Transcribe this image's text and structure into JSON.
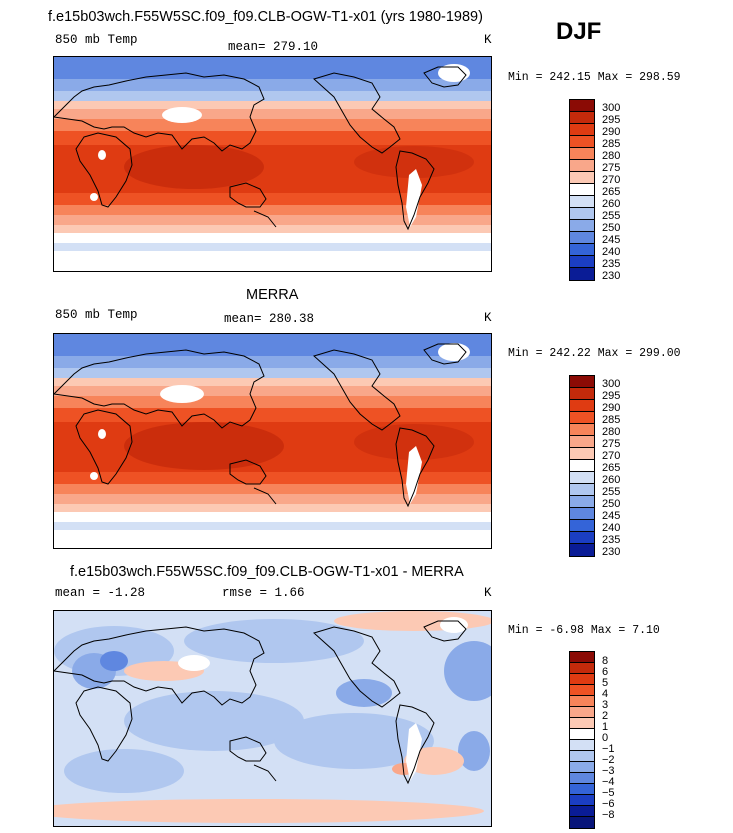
{
  "season": "DJF",
  "panels": [
    {
      "title": "f.e15b03wch.F55W5SC.f09_f09.CLB-OGW-T1-x01 (yrs 1980-1989)",
      "left_label": "850 mb Temp",
      "center_label": "mean=  279.10",
      "right_label": "K",
      "stats": "Min =  242.15  Max =  298.59",
      "colorbar": {
        "ticks": [
          "300",
          "295",
          "290",
          "285",
          "280",
          "275",
          "270",
          "265",
          "260",
          "255",
          "250",
          "245",
          "240",
          "235",
          "230"
        ],
        "colors": [
          "#8b0b05",
          "#c42a0b",
          "#df3b12",
          "#ee5224",
          "#f7845a",
          "#f9a78a",
          "#fcc9b4",
          "#ffffff",
          "#d3e0f5",
          "#b0c7ef",
          "#8aaae8",
          "#5f87e0",
          "#3464d8",
          "#1b3ec3",
          "#0a1c96"
        ]
      }
    },
    {
      "title": "MERRA",
      "left_label": "850 mb Temp",
      "center_label": "mean=  280.38",
      "right_label": "K",
      "stats": "Min =  242.22  Max =  299.00",
      "colorbar": {
        "ticks": [
          "300",
          "295",
          "290",
          "285",
          "280",
          "275",
          "270",
          "265",
          "260",
          "255",
          "250",
          "245",
          "240",
          "235",
          "230"
        ],
        "colors": [
          "#8b0b05",
          "#c42a0b",
          "#df3b12",
          "#ee5224",
          "#f7845a",
          "#f9a78a",
          "#fcc9b4",
          "#ffffff",
          "#d3e0f5",
          "#b0c7ef",
          "#8aaae8",
          "#5f87e0",
          "#3464d8",
          "#1b3ec3",
          "#0a1c96"
        ]
      }
    },
    {
      "title": "f.e15b03wch.F55W5SC.f09_f09.CLB-OGW-T1-x01 - MERRA",
      "left_label": "mean =   -1.28",
      "center_label": "rmse =    1.66",
      "right_label": "K",
      "stats": "Min =   -6.98  Max =    7.10",
      "colorbar": {
        "ticks": [
          "8",
          "6",
          "5",
          "4",
          "3",
          "2",
          "1",
          "0",
          "−1",
          "−2",
          "−3",
          "−4",
          "−5",
          "−6",
          "−8"
        ],
        "colors": [
          "#8b0b05",
          "#c42a0b",
          "#df3b12",
          "#ee5224",
          "#f7845a",
          "#f9a78a",
          "#fcc9b4",
          "#ffffff",
          "#d3e0f5",
          "#b0c7ef",
          "#8aaae8",
          "#5f87e0",
          "#3464d8",
          "#1b3ec3",
          "#0a1c96",
          "#08157a"
        ]
      }
    }
  ]
}
